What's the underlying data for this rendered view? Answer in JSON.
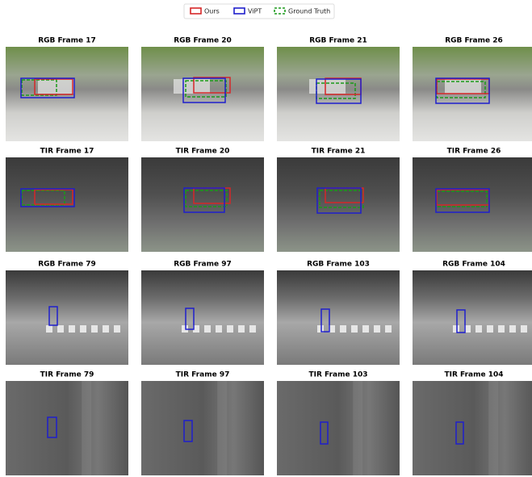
{
  "legend": [
    {
      "label": "Ours",
      "color": "#d62728"
    },
    {
      "label": "ViPT",
      "color": "#1f1fcc"
    },
    {
      "label": "Ground Truth",
      "color": "#1a9a1a"
    }
  ],
  "panels": [
    {
      "title": "RGB Frame 17"
    },
    {
      "title": "RGB Frame 20"
    },
    {
      "title": "RGB Frame 21"
    },
    {
      "title": "RGB Frame 26"
    },
    {
      "title": "TIR Frame 17"
    },
    {
      "title": "TIR Frame 20"
    },
    {
      "title": "TIR Frame 21"
    },
    {
      "title": "TIR Frame 26"
    },
    {
      "title": "RGB Frame 79"
    },
    {
      "title": "RGB Frame 97"
    },
    {
      "title": "RGB Frame 103"
    },
    {
      "title": "RGB Frame 104"
    },
    {
      "title": "TIR Frame 79"
    },
    {
      "title": "TIR Frame 97"
    },
    {
      "title": "TIR Frame 103"
    },
    {
      "title": "TIR Frame 104"
    }
  ]
}
